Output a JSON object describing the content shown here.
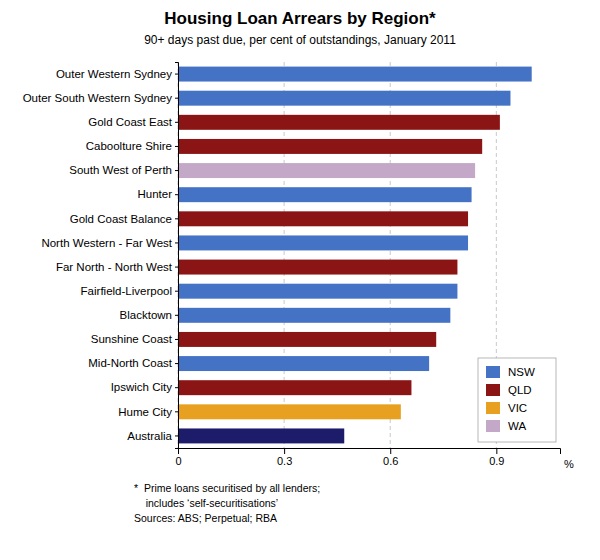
{
  "chart_data": {
    "type": "bar",
    "orientation": "horizontal",
    "title": "Housing Loan Arrears by Region*",
    "subtitle": "90+ days past due, per cent of outstandings, January 2011",
    "annotations": [
      "*  Prime loans securitised by all lenders;",
      "    includes ‘self-securitisations’",
      "Sources: ABS; Perpetual; RBA"
    ],
    "xlabel": "%",
    "categories": [
      "Outer Western Sydney",
      "Outer South Western Sydney",
      "Gold Coast East",
      "Caboolture Shire",
      "South West of Perth",
      "Hunter",
      "Gold Coast Balance",
      "North Western - Far West",
      "Far North - North West",
      "Fairfield-Liverpool",
      "Blacktown",
      "Sunshine Coast",
      "Mid-North Coast",
      "Ipswich City",
      "Hume City",
      "Australia"
    ],
    "values": [
      1.0,
      0.94,
      0.91,
      0.86,
      0.84,
      0.83,
      0.82,
      0.82,
      0.79,
      0.79,
      0.77,
      0.73,
      0.71,
      0.66,
      0.63,
      0.47
    ],
    "colors": [
      "#4472C4",
      "#4472C4",
      "#8B1414",
      "#8B1414",
      "#C4A8C8",
      "#4472C4",
      "#8B1414",
      "#4472C4",
      "#8B1414",
      "#4472C4",
      "#4472C4",
      "#8B1414",
      "#4472C4",
      "#8B1414",
      "#E8A020",
      "#1C1C6A"
    ],
    "legend_entries": [
      {
        "name": "NSW",
        "color": "#4472C4"
      },
      {
        "name": "QLD",
        "color": "#8B1414"
      },
      {
        "name": "VIC",
        "color": "#E8A020"
      },
      {
        "name": "WA",
        "color": "#C4A8C8"
      }
    ],
    "legend": "lower right",
    "xlim": [
      0,
      1.08
    ],
    "xticks": [
      0,
      0.3,
      0.6,
      0.9
    ],
    "grid": true
  }
}
